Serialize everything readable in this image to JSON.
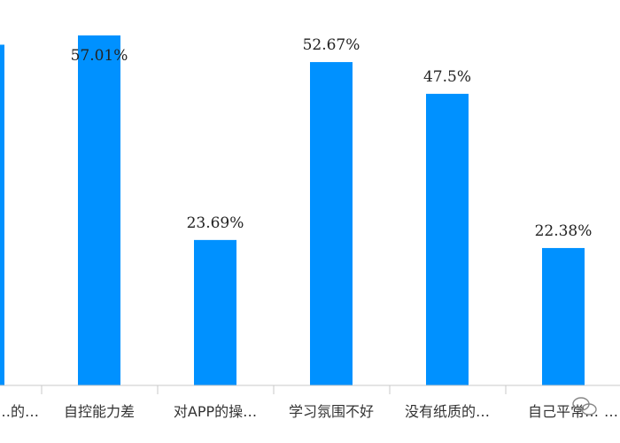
{
  "chart_data": {
    "type": "bar",
    "categories": [
      "…的…",
      "自控能力差",
      "对APP的操…",
      "学习氛围不好",
      "没有纸质的…",
      "自己平常…",
      "…"
    ],
    "values": [
      55.5,
      57.01,
      23.69,
      52.67,
      47.5,
      22.38,
      null
    ],
    "value_labels": [
      "…%",
      "57.01%",
      "23.69%",
      "52.67%",
      "47.5%",
      "22.38%",
      ""
    ],
    "ylim": [
      0,
      60
    ],
    "grid": false,
    "legend": "none",
    "colors": {
      "bar": "#0091ff",
      "axis": "#c8c8c8"
    }
  }
}
